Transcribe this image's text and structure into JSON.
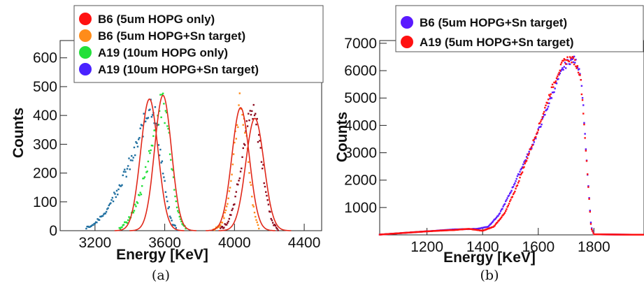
{
  "chart_data": [
    {
      "type": "scatter",
      "caption": "(a)",
      "xlabel": "Energy [KeV]",
      "ylabel": "Counts",
      "xlim": [
        3000,
        4500
      ],
      "ylim": [
        0,
        660
      ],
      "x_ticks": [
        3200,
        3600,
        4000,
        4400
      ],
      "y_ticks": [
        0,
        100,
        200,
        300,
        400,
        500,
        600
      ],
      "legend": [
        {
          "name": "B6 (5um HOPG only)",
          "color": "#ff1111"
        },
        {
          "name": "B6 (5um HOPG+Sn target)",
          "color": "#ff8c1a"
        },
        {
          "name": "A19 (10um HOPG only)",
          "color": "#22e03a"
        },
        {
          "name": "A19 (10um HOPG+Sn target)",
          "color": "#4a22ff"
        }
      ],
      "series": [
        {
          "color": "#ff8c1a",
          "points": [
            [
              3880,
              4
            ],
            [
              3900,
              10
            ],
            [
              3920,
              22
            ],
            [
              3940,
              48
            ],
            [
              3960,
              95
            ],
            [
              3980,
              180
            ],
            [
              4000,
              300
            ],
            [
              4020,
              400
            ],
            [
              4030,
              435
            ],
            [
              4040,
              425
            ],
            [
              4060,
              355
            ],
            [
              4080,
              240
            ],
            [
              4100,
              120
            ],
            [
              4120,
              45
            ],
            [
              4140,
              12
            ]
          ]
        },
        {
          "color": "#8b0a1e",
          "points": [
            [
              3920,
              6
            ],
            [
              3960,
              28
            ],
            [
              4000,
              100
            ],
            [
              4040,
              240
            ],
            [
              4060,
              320
            ],
            [
              4080,
              375
            ],
            [
              4100,
              400
            ],
            [
              4110,
              395
            ],
            [
              4120,
              382
            ],
            [
              4140,
              330
            ],
            [
              4160,
              230
            ],
            [
              4180,
              140
            ],
            [
              4200,
              70
            ],
            [
              4220,
              28
            ],
            [
              4250,
              6
            ]
          ]
        },
        {
          "color": "#22e03a",
          "points": [
            [
              3340,
              8
            ],
            [
              3380,
              28
            ],
            [
              3420,
              65
            ],
            [
              3460,
              130
            ],
            [
              3500,
              230
            ],
            [
              3540,
              340
            ],
            [
              3570,
              420
            ],
            [
              3590,
              440
            ],
            [
              3610,
              400
            ],
            [
              3630,
              300
            ],
            [
              3650,
              180
            ],
            [
              3670,
              90
            ],
            [
              3690,
              35
            ],
            [
              3720,
              8
            ]
          ]
        },
        {
          "color": "#1f6fa0",
          "points": [
            [
              3150,
              10
            ],
            [
              3200,
              25
            ],
            [
              3250,
              55
            ],
            [
              3300,
              110
            ],
            [
              3350,
              170
            ],
            [
              3400,
              230
            ],
            [
              3440,
              290
            ],
            [
              3480,
              370
            ],
            [
              3510,
              440
            ],
            [
              3530,
              440
            ],
            [
              3550,
              380
            ],
            [
              3580,
              250
            ],
            [
              3610,
              110
            ],
            [
              3640,
              30
            ],
            [
              3670,
              5
            ]
          ]
        }
      ],
      "fits": [
        {
          "color": "#e0281a",
          "mu": 3512,
          "sigma": 50,
          "amp": 457
        },
        {
          "color": "#e0281a",
          "mu": 3590,
          "sigma": 48,
          "amp": 470
        },
        {
          "color": "#e0281a",
          "mu": 4035,
          "sigma": 50,
          "amp": 427
        },
        {
          "color": "#e0281a",
          "mu": 4117,
          "sigma": 52,
          "amp": 390
        }
      ]
    },
    {
      "type": "scatter",
      "caption": "(b)",
      "xlabel": "Energy [KeV]",
      "ylabel": "Counts",
      "xlim": [
        1030,
        1980
      ],
      "ylim": [
        0,
        7100
      ],
      "x_ticks": [
        1200,
        1400,
        1600,
        1800
      ],
      "y_ticks": [
        1000,
        2000,
        3000,
        4000,
        5000,
        6000,
        7000
      ],
      "legend": [
        {
          "name": "B6 (5um HOPG+Sn target)",
          "color": "#5a1aff"
        },
        {
          "name": "A19 (5um HOPG+Sn target)",
          "color": "#ff1111"
        }
      ],
      "series": [
        {
          "name": "B6 (5um HOPG+Sn target)",
          "color": "#5a1aff",
          "points": [
            [
              1030,
              10
            ],
            [
              1100,
              60
            ],
            [
              1200,
              130
            ],
            [
              1300,
              200
            ],
            [
              1380,
              220
            ],
            [
              1420,
              300
            ],
            [
              1460,
              750
            ],
            [
              1500,
              1550
            ],
            [
              1540,
              2450
            ],
            [
              1580,
              3300
            ],
            [
              1620,
              4300
            ],
            [
              1660,
              5400
            ],
            [
              1690,
              6100
            ],
            [
              1710,
              6350
            ],
            [
              1730,
              6400
            ],
            [
              1750,
              6000
            ],
            [
              1760,
              5000
            ],
            [
              1775,
              2500
            ],
            [
              1790,
              300
            ],
            [
              1800,
              20
            ],
            [
              1900,
              10
            ],
            [
              1980,
              5
            ]
          ]
        },
        {
          "name": "A19 (5um HOPG+Sn target)",
          "color": "#ff1111",
          "points": [
            [
              1030,
              10
            ],
            [
              1100,
              60
            ],
            [
              1200,
              130
            ],
            [
              1300,
              180
            ],
            [
              1350,
              220
            ],
            [
              1400,
              150
            ],
            [
              1440,
              300
            ],
            [
              1480,
              800
            ],
            [
              1520,
              1700
            ],
            [
              1560,
              2800
            ],
            [
              1600,
              3900
            ],
            [
              1640,
              5100
            ],
            [
              1670,
              5900
            ],
            [
              1690,
              6300
            ],
            [
              1710,
              6450
            ],
            [
              1730,
              6350
            ],
            [
              1750,
              5900
            ],
            [
              1760,
              4800
            ],
            [
              1775,
              2500
            ],
            [
              1790,
              250
            ],
            [
              1800,
              20
            ],
            [
              1900,
              10
            ],
            [
              1980,
              5
            ]
          ]
        }
      ]
    }
  ]
}
